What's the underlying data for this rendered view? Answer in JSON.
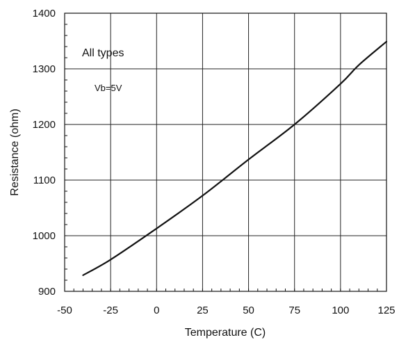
{
  "chart_data": {
    "type": "line",
    "xlabel": "Temperature (C)",
    "ylabel": "Resistance (ohm)",
    "xlim": [
      -50,
      125
    ],
    "ylim": [
      900,
      1400
    ],
    "x_ticks": [
      -50,
      -25,
      0,
      25,
      50,
      75,
      100,
      125
    ],
    "y_ticks": [
      900,
      1000,
      1100,
      1200,
      1300,
      1400
    ],
    "x_tick_labels": [
      "-50",
      "-25",
      "0",
      "25",
      "50",
      "75",
      "100",
      "125"
    ],
    "y_tick_labels": [
      "900",
      "1000",
      "1100",
      "1200",
      "1300",
      "1400"
    ],
    "grid": true,
    "annotations": [
      "All types",
      "Vb=5V"
    ],
    "series": [
      {
        "x": [
          -40,
          -25,
          0,
          25,
          50,
          75,
          100,
          110,
          125
        ],
        "y": [
          929,
          957,
          1013,
          1072,
          1137,
          1200,
          1273,
          1307,
          1349
        ]
      }
    ]
  }
}
